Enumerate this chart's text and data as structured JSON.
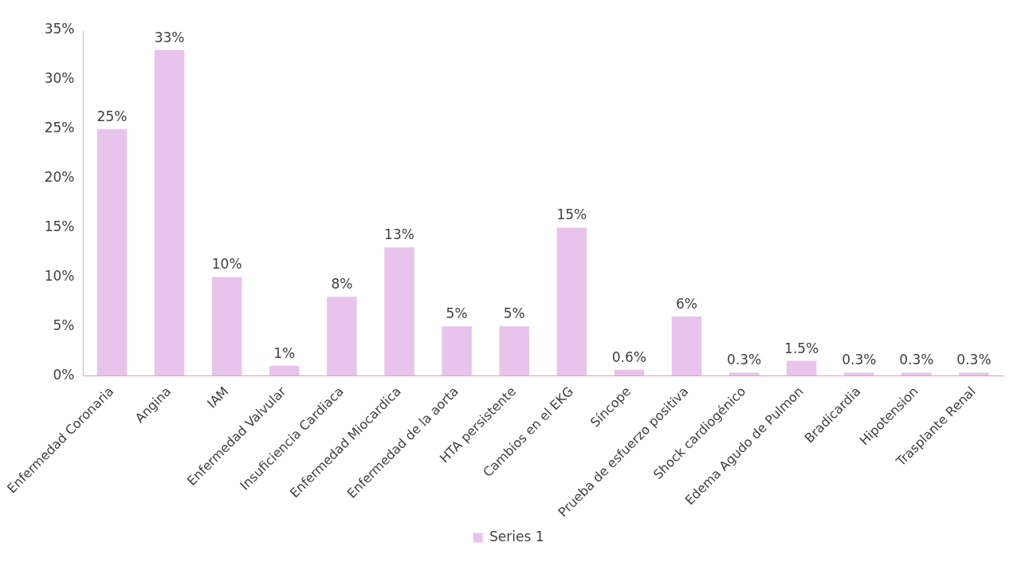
{
  "chart_data": {
    "type": "bar",
    "categories": [
      "Enfermedad Coronaria",
      "Angina",
      "IAM",
      "Enfermedad Valvular",
      "Insuficiencia Cardiaca",
      "Enfermedad Miocardica",
      "Enfermedad de la aorta",
      "HTA persistente",
      "Cambios en el EKG",
      "Síncope",
      "Prueba de esfuerzo positiva",
      "Shock cardiogénico",
      "Edema Agudo de Pulmon",
      "Bradicardia",
      "Hipotension",
      "Trasplante Renal"
    ],
    "series": [
      {
        "name": "Series 1",
        "color": "#e8c4ec",
        "values": [
          25,
          33,
          10,
          1,
          8,
          13,
          5,
          5,
          15,
          0.6,
          6,
          0.3,
          1.5,
          0.3,
          0.3,
          0.3
        ],
        "value_labels": [
          "25%",
          "33%",
          "10%",
          "1%",
          "8%",
          "13%",
          "5%",
          "5%",
          "15%",
          "0.6%",
          "6%",
          "0.3%",
          "1.5%",
          "0.3%",
          "0.3%",
          "0.3%"
        ]
      }
    ],
    "ylim": [
      0,
      35
    ],
    "yticks": [
      {
        "value": 0,
        "label": "0%"
      },
      {
        "value": 5,
        "label": "5%"
      },
      {
        "value": 10,
        "label": "10%"
      },
      {
        "value": 15,
        "label": "15%"
      },
      {
        "value": 20,
        "label": "20%"
      },
      {
        "value": 25,
        "label": "25%"
      },
      {
        "value": 30,
        "label": "30%"
      },
      {
        "value": 35,
        "label": "35%"
      }
    ],
    "grid": false,
    "legend": "bottom"
  }
}
